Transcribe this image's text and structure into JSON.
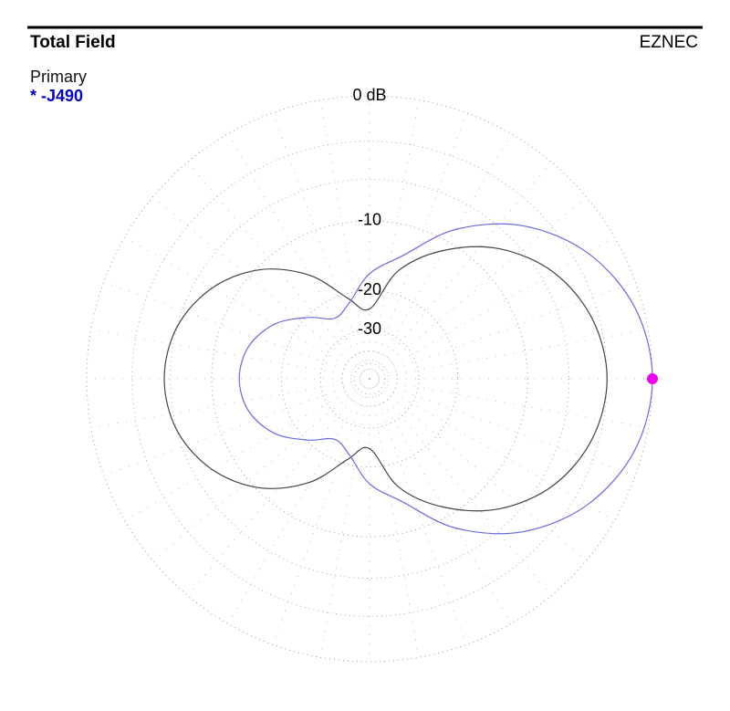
{
  "chart_data": {
    "type": "polar",
    "title": "Total Field",
    "source": "EZNEC",
    "rscale": "arrl-log",
    "rticks": [
      {
        "value": 0,
        "label": "0 dB"
      },
      -10,
      -20,
      -30
    ],
    "rminor": [
      -3,
      -6,
      -40,
      -50
    ],
    "angles": [
      0,
      15,
      30,
      45,
      60,
      75,
      90,
      105,
      120,
      135,
      150,
      165,
      180,
      195,
      210,
      225,
      240,
      255,
      270,
      285,
      300,
      315,
      330,
      345
    ],
    "marker_color": "#ee00ee",
    "series": [
      {
        "name": "* -J490",
        "color": "#0000cc",
        "line_color": "#6a6ae8",
        "values": [
          0,
          -0.5,
          -2.0,
          -4.6,
          -8.5,
          -13.7,
          -17.0,
          -22.0,
          -24.0,
          -20.3,
          -16.3,
          -14.0,
          -13.3,
          -14.0,
          -16.3,
          -20.3,
          -24.0,
          -22.0,
          -17.0,
          -13.7,
          -8.5,
          -4.6,
          -2.0,
          -0.5
        ]
      },
      {
        "name": "Primary",
        "color": "#111111",
        "line_color": "#444444",
        "values": [
          -3.0,
          -3.5,
          -4.9,
          -7.4,
          -11.1,
          -15.9,
          -24,
          -21.0,
          -14.8,
          -10.4,
          -7.6,
          -6.0,
          -5.5,
          -6.0,
          -7.6,
          -10.4,
          -14.8,
          -21.0,
          -24,
          -15.9,
          -11.1,
          -7.4,
          -4.9,
          -3.5
        ]
      }
    ]
  }
}
